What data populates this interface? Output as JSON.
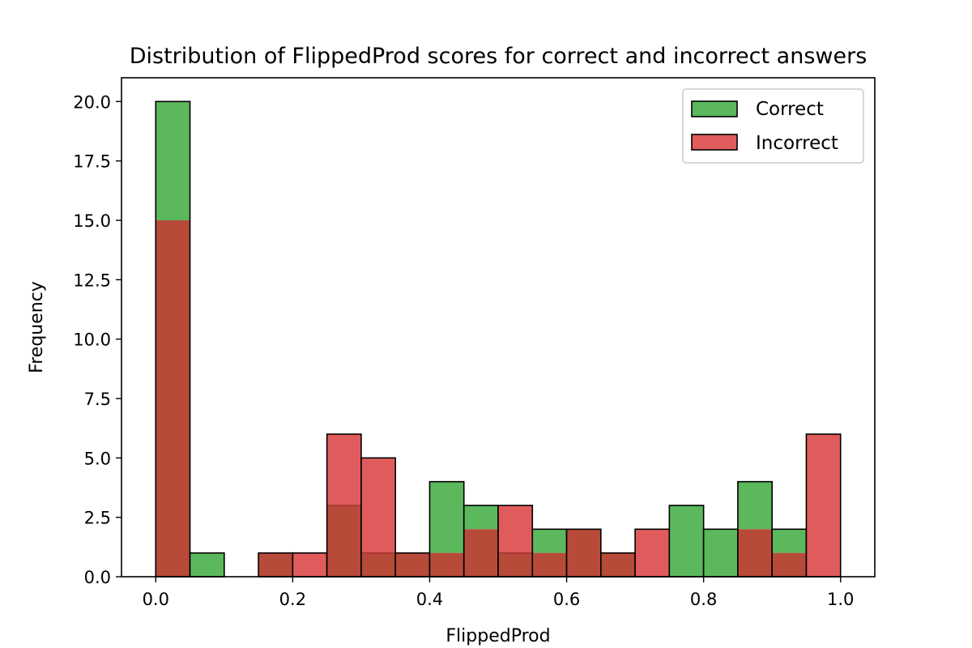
{
  "chart_data": {
    "type": "bar",
    "title": "Distribution of FlippedProd scores for correct and incorrect answers",
    "xlabel": "FlippedProd",
    "ylabel": "Frequency",
    "xlim": [
      -0.05,
      1.05
    ],
    "ylim": [
      0,
      21
    ],
    "xticks": [
      {
        "value": 0.0,
        "label": "0.0"
      },
      {
        "value": 0.2,
        "label": "0.2"
      },
      {
        "value": 0.4,
        "label": "0.4"
      },
      {
        "value": 0.6,
        "label": "0.6"
      },
      {
        "value": 0.8,
        "label": "0.8"
      },
      {
        "value": 1.0,
        "label": "1.0"
      }
    ],
    "yticks": [
      {
        "value": 0.0,
        "label": "0.0"
      },
      {
        "value": 2.5,
        "label": "2.5"
      },
      {
        "value": 5.0,
        "label": "5.0"
      },
      {
        "value": 7.5,
        "label": "7.5"
      },
      {
        "value": 10.0,
        "label": "10.0"
      },
      {
        "value": 12.5,
        "label": "12.5"
      },
      {
        "value": 15.0,
        "label": "15.0"
      },
      {
        "value": 17.5,
        "label": "17.5"
      },
      {
        "value": 20.0,
        "label": "20.0"
      }
    ],
    "bin_edges": [
      0.0,
      0.05,
      0.1,
      0.15,
      0.2,
      0.25,
      0.3,
      0.35,
      0.4,
      0.45,
      0.5,
      0.55,
      0.6,
      0.65,
      0.7,
      0.75,
      0.8,
      0.85,
      0.9,
      0.95,
      1.0
    ],
    "series": [
      {
        "name": "Correct",
        "color": "#5cb85c",
        "values": [
          20,
          1,
          0,
          1,
          0,
          3,
          1,
          1,
          4,
          3,
          1,
          2,
          2,
          1,
          0,
          3,
          2,
          4,
          2,
          0
        ]
      },
      {
        "name": "Incorrect",
        "color": "#e05c5c",
        "values": [
          15,
          0,
          0,
          1,
          1,
          6,
          5,
          1,
          1,
          2,
          3,
          1,
          2,
          1,
          2,
          0,
          0,
          2,
          1,
          6
        ]
      }
    ],
    "overlap_color": "#b84a3a",
    "legend": "top-right",
    "grid": false
  }
}
